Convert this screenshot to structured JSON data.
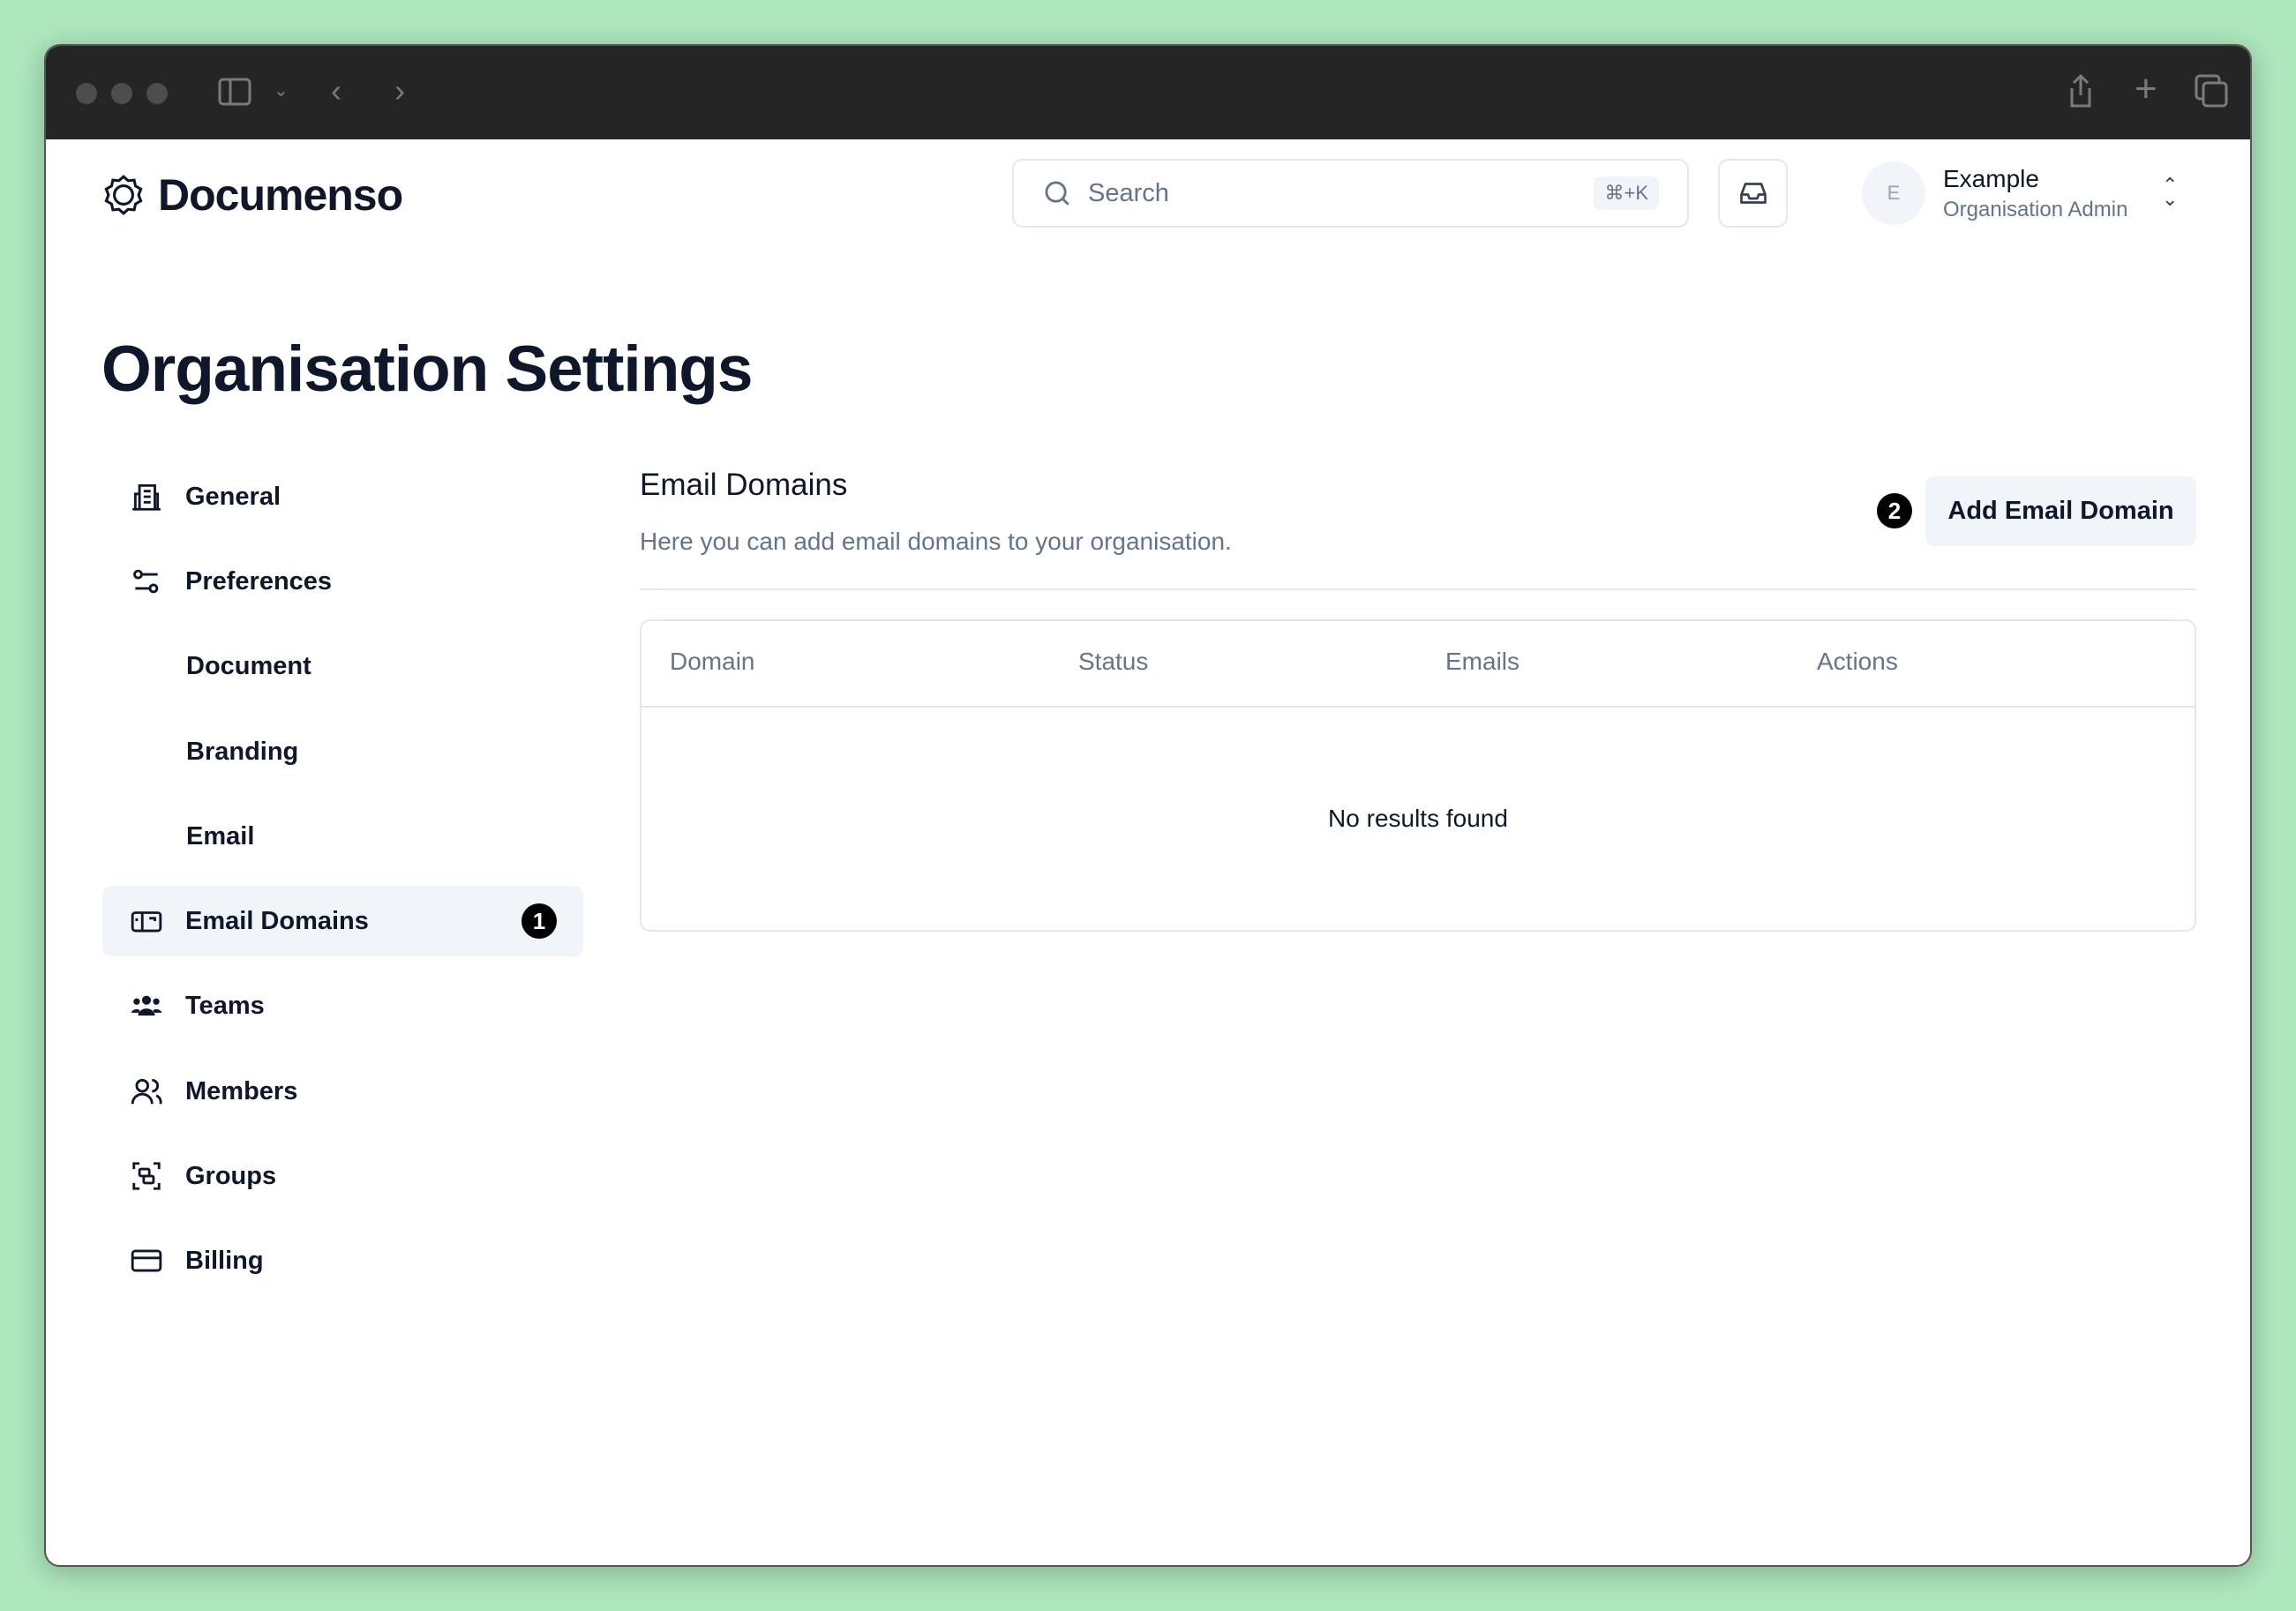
{
  "header": {
    "brand": "Documenso",
    "search_placeholder": "Search",
    "search_shortcut": "⌘+K",
    "user": {
      "initial": "E",
      "name": "Example",
      "role": "Organisation Admin"
    }
  },
  "page_title": "Organisation Settings",
  "sidebar": {
    "items": [
      {
        "label": "General",
        "icon": "building-icon"
      },
      {
        "label": "Preferences",
        "icon": "sliders-icon"
      },
      {
        "label": "Document"
      },
      {
        "label": "Branding"
      },
      {
        "label": "Email"
      },
      {
        "label": "Email Domains",
        "icon": "mail-box-icon",
        "active": true,
        "badge": "1"
      },
      {
        "label": "Teams",
        "icon": "users-icon"
      },
      {
        "label": "Members",
        "icon": "members-icon"
      },
      {
        "label": "Groups",
        "icon": "groups-icon"
      },
      {
        "label": "Billing",
        "icon": "credit-card-icon"
      }
    ]
  },
  "main": {
    "title": "Email Domains",
    "description": "Here you can add email domains to your organisation.",
    "add_button": "Add Email Domain",
    "add_badge": "2",
    "table": {
      "columns": [
        "Domain",
        "Status",
        "Emails",
        "Actions"
      ],
      "empty": "No results found"
    }
  }
}
